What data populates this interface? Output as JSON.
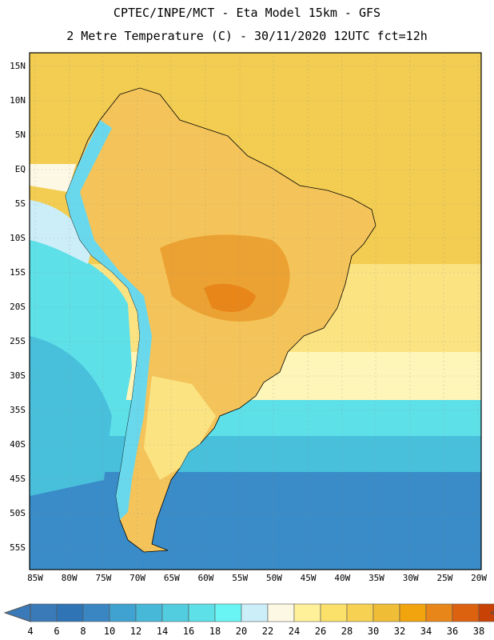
{
  "header": {
    "line1": "CPTEC/INPE/MCT -  Eta Model 15km - GFS",
    "line2": "2 Metre Temperature (C) - 30/11/2020 12UTC fct=12h"
  },
  "map": {
    "lon_range": [
      -86,
      -20
    ],
    "lat_range": [
      -58,
      17
    ],
    "lat_labels": [
      "15N",
      "10N",
      "5N",
      "EQ",
      "5S",
      "10S",
      "15S",
      "20S",
      "25S",
      "30S",
      "35S",
      "40S",
      "45S",
      "50S",
      "55S"
    ],
    "lon_labels": [
      "85W",
      "80W",
      "75W",
      "70W",
      "65W",
      "60W",
      "55W",
      "50W",
      "45W",
      "40W",
      "35W",
      "30W",
      "25W",
      "20W"
    ]
  },
  "colorbar": {
    "labels": [
      "4",
      "6",
      "8",
      "10",
      "12",
      "14",
      "16",
      "18",
      "20",
      "22",
      "24",
      "26",
      "28",
      "30",
      "32",
      "34",
      "36",
      "38"
    ],
    "colors": [
      "#3a7ab8",
      "#2f74b5",
      "#3a86c3",
      "#40a2d0",
      "#48b8d8",
      "#52cde0",
      "#5de0e8",
      "#6af5f5",
      "#cceef8",
      "#fdf8e4",
      "#fef19a",
      "#fbe06a",
      "#f6d152",
      "#f0bd36",
      "#f2a40e",
      "#e8861a",
      "#dc6210",
      "#c84206"
    ],
    "left_arrow_color": "#3a7ab8",
    "right_arrow_color": "#b83408"
  },
  "palette": {
    "ocean_warm": "#f2cd52",
    "ocean_mild": "#fbe382",
    "ocean_cool": "#fef5b8",
    "ocean_cold": "#5ee0e8",
    "ocean_colder": "#48c0dc",
    "ocean_coldest": "#3a8cc8",
    "land": "#f4c45a",
    "land_hot": "#eca232",
    "andes": "#6ad8ec",
    "border": "#000000"
  }
}
